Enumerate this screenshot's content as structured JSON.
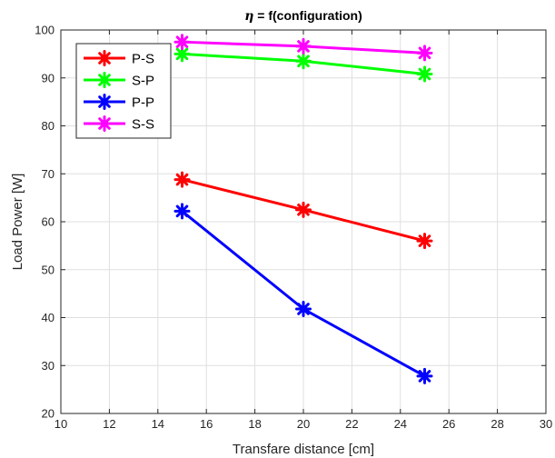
{
  "chart_data": {
    "type": "line",
    "title_symbol": "η",
    "title_rest": " = f(configuration)",
    "xlabel": "Transfare distance [cm]",
    "ylabel": "Load Power [W]",
    "xlim": [
      10,
      30
    ],
    "ylim": [
      20,
      100
    ],
    "xticks": [
      10,
      12,
      14,
      16,
      18,
      20,
      22,
      24,
      26,
      28,
      30
    ],
    "yticks": [
      20,
      30,
      40,
      50,
      60,
      70,
      80,
      90,
      100
    ],
    "grid": true,
    "legend_position": "top-left",
    "x": [
      15,
      20,
      25
    ],
    "series": [
      {
        "name": "P-S",
        "color": "#ff0000",
        "values": [
          68.8,
          62.5,
          56.0
        ]
      },
      {
        "name": "S-P",
        "color": "#00ff00",
        "values": [
          95.0,
          93.5,
          90.8
        ]
      },
      {
        "name": "P-P",
        "color": "#0000ff",
        "values": [
          62.2,
          41.8,
          27.8
        ]
      },
      {
        "name": "S-S",
        "color": "#ff00ff",
        "values": [
          97.5,
          96.6,
          95.2
        ]
      }
    ]
  }
}
